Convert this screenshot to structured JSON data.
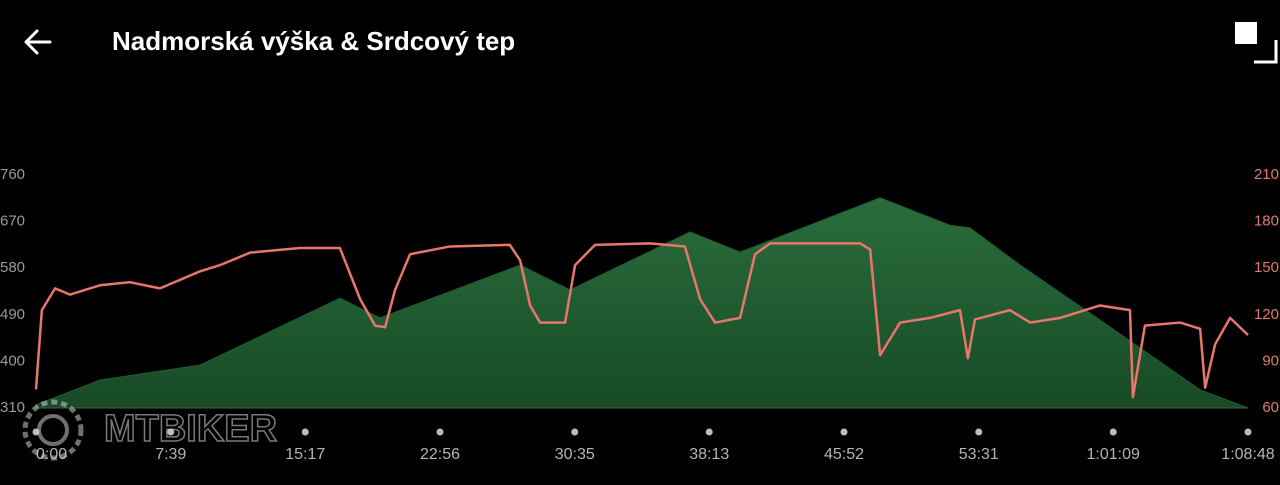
{
  "header": {
    "title": "Nadmorská výška & Srdcový tep"
  },
  "watermark": "MTBIKER",
  "chart_data": {
    "type": "line",
    "xlim": [
      0,
      4128
    ],
    "xticks": [
      {
        "value": 0,
        "label": "0:00"
      },
      {
        "value": 459,
        "label": "7:39"
      },
      {
        "value": 917,
        "label": "15:17"
      },
      {
        "value": 1376,
        "label": "22:56"
      },
      {
        "value": 1835,
        "label": "30:35"
      },
      {
        "value": 2293,
        "label": "38:13"
      },
      {
        "value": 2752,
        "label": "45:52"
      },
      {
        "value": 3211,
        "label": "53:31"
      },
      {
        "value": 3669,
        "label": "1:01:09"
      },
      {
        "value": 4128,
        "label": "1:08:48"
      }
    ],
    "ylim": [
      310,
      760
    ],
    "yticks": [
      310,
      400,
      490,
      580,
      670,
      760
    ],
    "y2lim": [
      60,
      210
    ],
    "y2ticks": [
      60,
      90,
      120,
      150,
      180,
      210
    ],
    "series": [
      {
        "type": "area",
        "color": "#1f5c31",
        "x": [
          0,
          218,
          559,
          1035,
          1172,
          1649,
          1819,
          2228,
          2398,
          2875,
          3113,
          3181,
          3352,
          3624,
          3965,
          4128
        ],
        "values": [
          316,
          364,
          393,
          522,
          484,
          586,
          538,
          650,
          611,
          716,
          663,
          658,
          586,
          480,
          345,
          310
        ]
      },
      {
        "type": "line",
        "axis": "y2",
        "color": "#e8766c",
        "x": [
          0,
          20,
          65,
          116,
          218,
          320,
          422,
          559,
          627,
          729,
          899,
          1035,
          1104,
          1155,
          1189,
          1223,
          1274,
          1410,
          1614,
          1649,
          1683,
          1717,
          1802,
          1836,
          1904,
          2091,
          2210,
          2262,
          2313,
          2398,
          2449,
          2500,
          2807,
          2841,
          2875,
          2943,
          3045,
          3147,
          3174,
          3198,
          3317,
          3386,
          3488,
          3624,
          3726,
          3736,
          3777,
          3897,
          3965,
          3982,
          4016,
          4067,
          4128
        ],
        "values": [
          72,
          123,
          137,
          133,
          139,
          141,
          137,
          148,
          152,
          160,
          163,
          163,
          130,
          113,
          112,
          136,
          159,
          164,
          165,
          155,
          126,
          115,
          115,
          152,
          165,
          166,
          164,
          130,
          115,
          118,
          159,
          166,
          166,
          162,
          94,
          115,
          118,
          123,
          92,
          117,
          123,
          115,
          118,
          126,
          123,
          67,
          113,
          115,
          111,
          73,
          101,
          118,
          107
        ]
      }
    ]
  }
}
